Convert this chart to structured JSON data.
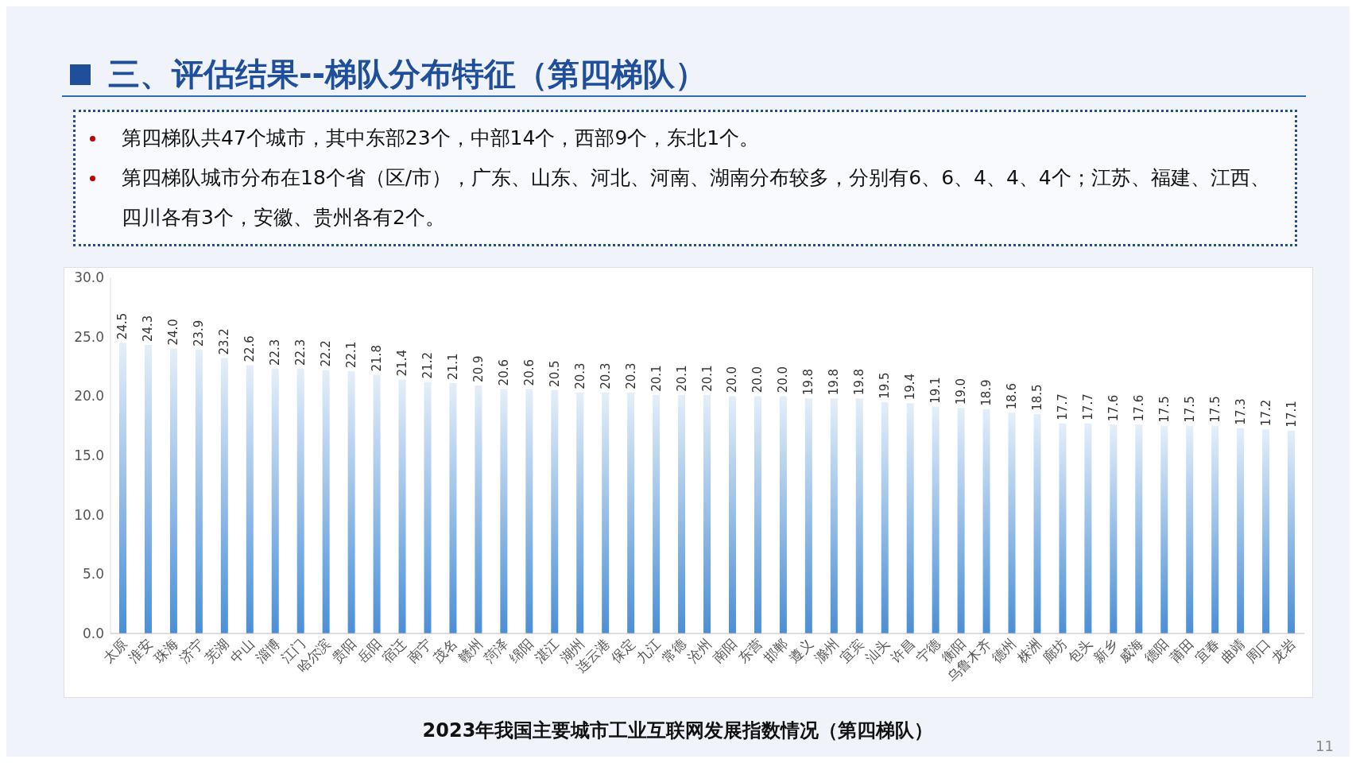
{
  "chart_data": {
    "type": "bar",
    "title": "三、评估结果--梯队分布特征（第四梯队）",
    "subtitle": "2023年我国主要城市工业互联网发展指数情况（第四梯队）",
    "annotations": [
      "第四梯队共47个城市，其中东部23个，中部14个，西部9个，东北1个。",
      "第四梯队城市分布在18个省（区/市），广东、山东、河北、河南、湖南分布较多，分别有6、6、4、4、4个；江苏、福建、江西、四川各有3个，安徽、贵州各有2个。",
      "11"
    ],
    "categories": [
      "太原",
      "淮安",
      "珠海",
      "济宁",
      "芜湖",
      "中山",
      "淄博",
      "江门",
      "哈尔滨",
      "贵阳",
      "岳阳",
      "宿迁",
      "南宁",
      "茂名",
      "赣州",
      "菏泽",
      "绵阳",
      "湛江",
      "湖州",
      "连云港",
      "保定",
      "九江",
      "常德",
      "沧州",
      "南阳",
      "东营",
      "邯郸",
      "遵义",
      "滁州",
      "宜宾",
      "汕头",
      "许昌",
      "宁德",
      "衡阳",
      "乌鲁木齐",
      "德州",
      "株洲",
      "廊坊",
      "包头",
      "新乡",
      "威海",
      "德阳",
      "莆田",
      "宜春",
      "曲靖",
      "周口",
      "龙岩"
    ],
    "values": [
      24.5,
      24.3,
      24.0,
      23.9,
      23.2,
      22.6,
      22.3,
      22.3,
      22.2,
      22.1,
      21.8,
      21.4,
      21.2,
      21.1,
      20.9,
      20.6,
      20.6,
      20.5,
      20.3,
      20.3,
      20.3,
      20.1,
      20.1,
      20.1,
      20.0,
      20.0,
      20.0,
      19.8,
      19.8,
      19.8,
      19.5,
      19.4,
      19.1,
      19.0,
      18.9,
      18.6,
      18.5,
      17.7,
      17.7,
      17.6,
      17.6,
      17.5,
      17.5,
      17.5,
      17.3,
      17.2,
      17.1
    ],
    "value_labels": [
      "24.5",
      "24.3",
      "24.0",
      "23.9",
      "23.2",
      "22.6",
      "22.3",
      "22.3",
      "22.2",
      "22.1",
      "21.8",
      "21.4",
      "21.2",
      "21.1",
      "20.9",
      "20.6",
      "20.6",
      "20.5",
      "20.3",
      "20.3",
      "20.3",
      "20.1",
      "20.1",
      "20.1",
      "20.0",
      "20.0",
      "20.0",
      "19.8",
      "19.8",
      "19.8",
      "19.5",
      "19.4",
      "19.1",
      "19.0",
      "18.9",
      "18.6",
      "18.5",
      "17.7",
      "17.7",
      "17.6",
      "17.6",
      "17.5",
      "17.5",
      "17.5",
      "17.3",
      "17.2",
      "17.1"
    ],
    "color": "#4a8fd6",
    "ylim": [
      0,
      30
    ],
    "yticks": [
      {
        "value": 0,
        "label": "0.0"
      },
      {
        "value": 5,
        "label": "5.0"
      },
      {
        "value": 10,
        "label": "10.0"
      },
      {
        "value": 15,
        "label": "15.0"
      },
      {
        "value": 20,
        "label": "20.0"
      },
      {
        "value": 25,
        "label": "25.0"
      },
      {
        "value": 30,
        "label": "30.0"
      }
    ],
    "grid": false
  }
}
